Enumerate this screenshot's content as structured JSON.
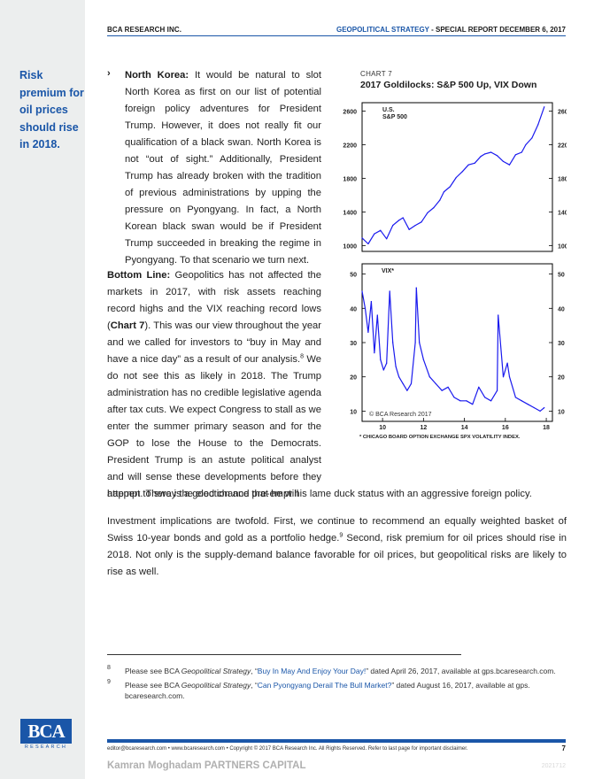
{
  "header": {
    "left": "BCA RESEARCH INC.",
    "right_accent": "GEOPOLITICAL STRATEGY",
    "right_rest": " - SPECIAL REPORT  DECEMBER 6, 2017"
  },
  "sidebar_note": "Risk premium for oil prices should rise in 2018.",
  "body": {
    "bullet": "›",
    "p1_lead": "North Korea:",
    "p1_text": " It would be natural to slot North Korea as first on our list of potential foreign policy adventures for President Trump. However, it does not really fit our qualification of a black swan. North Korea is not “out of sight.” Additionally, President Trump has already broken with the tradition of previous administrations by upping the pressure on Pyongyang. In fact, a North Korean black swan would be if President Trump succeeded in breaking the regime in Pyongyang. To that scenario we turn next.",
    "p2_lead": "Bottom Line:",
    "p2_a": " Geopolitics has not affected the markets in 2017, with risk assets reaching record highs and the VIX reaching record lows (",
    "p2_chartref": "Chart 7",
    "p2_b": "). This was our view throughout the year and we called for investors to “buy in May and have a nice day” as a result of our analysis.",
    "p2_fn": "8",
    "p2_c": " We do not see this as likely in 2018. The Trump administration has no credible legislative agenda after tax cuts. We expect Congress to stall as we enter the summer primary season and for the GOP to lose the House to the Democrats. President Trump is an astute political analyst and will sense these developments before they happen. There is a good chance that he will",
    "p2_cont": "attempt to sway the election and pre-empt his lame duck status with an aggressive foreign policy.",
    "p3_a": "Investment implications are twofold. First, we continue to recommend an equally weighted basket of Swiss 10-year bonds and gold as a portfolio hedge.",
    "p3_fn": "9",
    "p3_b": " Second, risk premium for oil prices should rise in 2018. Not only is the supply-demand balance favorable for oil prices, but geopolitical risks are likely to rise as well."
  },
  "chart": {
    "label": "CHART 7",
    "title": "2017 Goldilocks: S&P 500 Up, VIX Down"
  },
  "chart_data": {
    "type": "line",
    "panels": [
      {
        "series_label": [
          "U.S.",
          "S&P 500"
        ],
        "ylim": [
          930,
          2700
        ],
        "yticks": [
          1000,
          1400,
          1800,
          2200,
          2600
        ],
        "x": [
          9.0,
          9.3,
          9.6,
          9.9,
          10.2,
          10.5,
          10.8,
          11.0,
          11.3,
          11.6,
          11.9,
          12.2,
          12.5,
          12.8,
          13.0,
          13.3,
          13.6,
          13.9,
          14.2,
          14.5,
          14.8,
          15.0,
          15.3,
          15.6,
          15.9,
          16.2,
          16.5,
          16.8,
          17.0,
          17.3,
          17.6,
          17.9
        ],
        "values": [
          1090,
          1020,
          1140,
          1180,
          1080,
          1240,
          1300,
          1330,
          1190,
          1240,
          1280,
          1390,
          1450,
          1540,
          1640,
          1700,
          1810,
          1880,
          1960,
          1980,
          2060,
          2090,
          2110,
          2070,
          2000,
          1960,
          2080,
          2110,
          2200,
          2280,
          2440,
          2650
        ],
        "color": "#1a1aee"
      },
      {
        "series_label": [
          "VIX*"
        ],
        "ylim": [
          7,
          53
        ],
        "yticks": [
          10,
          20,
          30,
          40,
          50
        ],
        "x": [
          9.0,
          9.15,
          9.3,
          9.45,
          9.6,
          9.75,
          9.9,
          10.05,
          10.2,
          10.35,
          10.5,
          10.65,
          10.8,
          11.0,
          11.2,
          11.4,
          11.6,
          11.65,
          11.8,
          12.0,
          12.3,
          12.6,
          12.9,
          13.2,
          13.5,
          13.8,
          14.1,
          14.4,
          14.7,
          15.0,
          15.3,
          15.6,
          15.65,
          15.9,
          16.1,
          16.2,
          16.5,
          16.8,
          17.1,
          17.4,
          17.7,
          17.9
        ],
        "values": [
          45,
          40,
          33,
          42,
          27,
          38,
          25,
          22,
          24,
          45,
          30,
          23,
          20,
          18,
          16,
          18,
          30,
          46,
          30,
          25,
          20,
          18,
          16,
          17,
          14,
          13,
          13,
          12,
          17,
          14,
          13,
          16,
          38,
          20,
          24,
          20,
          14,
          13,
          12,
          11,
          10,
          11
        ],
        "color": "#1a1aee"
      }
    ],
    "x_ticks": [
      "10",
      "12",
      "14",
      "16",
      "18"
    ],
    "x_tick_values": [
      10,
      12,
      14,
      16,
      18
    ],
    "xlim": [
      9,
      18.3
    ],
    "copyright": "© BCA Research 2017",
    "footnote": "* CHICAGO BOARD OPTION EXCHANGE SPX VOLATILITY INDEX."
  },
  "footnotes": [
    {
      "num": "8",
      "pre": "Please see BCA ",
      "italic": "Geopolitical Strategy",
      "mid": ", “",
      "link": "Buy In May And Enjoy Your Day!",
      "post": "” dated April 26, 2017, available at gps.bcaresearch.com."
    },
    {
      "num": "9",
      "pre": "Please see BCA ",
      "italic": "Geopolitical Strategy",
      "mid": ", “",
      "link": "Can Pyongyang Derail The Bull Market?",
      "post": "” dated August 16, 2017, available at gps. bcaresearch.com."
    }
  ],
  "footer": {
    "logo": "BCA",
    "logo_sub": "RESEARCH",
    "text": "editor@bcaresearch.com  •  www.bcaresearch.com  •  Copyright © 2017 BCA Research Inc. All Rights Reserved. Refer to last page for important disclaimer.",
    "page": "7",
    "watermark": "Kamran Moghadam PARTNERS CAPITAL",
    "code": "2021712"
  },
  "colors": {
    "accent": "#1a56a8",
    "series": "#1a1aee"
  }
}
